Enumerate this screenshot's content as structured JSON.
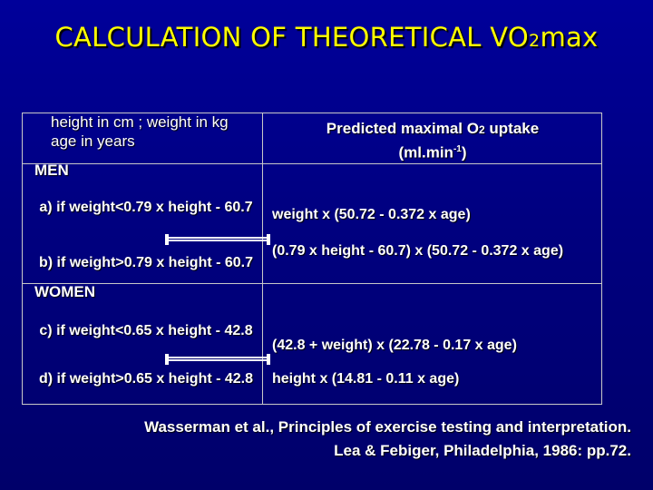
{
  "title": {
    "main": "CALCULATION OF THEORETICAL VO",
    "sub": "2",
    "suffix": "max"
  },
  "header_left": {
    "line1": "height in cm ; weight in kg",
    "line2": "age in years"
  },
  "header_right": {
    "line1_pre": "Predicted maximal O",
    "line1_sub": "2",
    "line1_post": " uptake",
    "line2_pre": "(ml.min",
    "line2_sup": "-1",
    "line2_post": ")"
  },
  "sections": {
    "men": "MEN",
    "women": "WOMEN"
  },
  "rows": [
    {
      "condition": "a) if weight<0.79 x height - 60.7",
      "formula": "weight x (50.72 - 0.372 x age)"
    },
    {
      "condition": "b) if weight>0.79 x height - 60.7",
      "formula": "(0.79 x height - 60.7) x (50.72 - 0.372 x age)"
    },
    {
      "condition": "c) if weight<0.65 x height - 42.8",
      "formula": "(42.8 + weight) x (22.78 - 0.17 x age)"
    },
    {
      "condition": "d) if weight>0.65 x height - 42.8",
      "formula": "height x (14.81 - 0.11 x age)"
    }
  ],
  "citation": {
    "line1": "Wasserman et al., Principles of exercise testing and interpretation.",
    "line2": "Lea & Febiger, Philadelphia, 1986: pp.72."
  },
  "colors": {
    "background": "#000080",
    "title": "#ffff00",
    "text": "#ffffff",
    "grid": "#c8c8c8"
  }
}
